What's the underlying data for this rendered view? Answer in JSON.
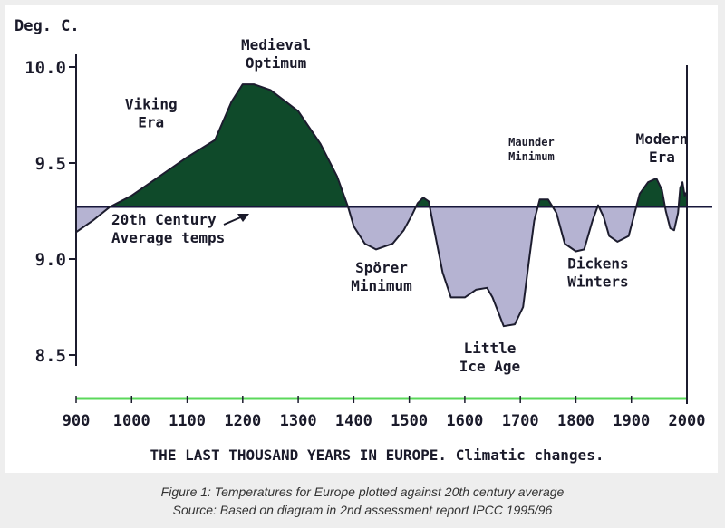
{
  "chart_data": {
    "type": "area",
    "title": "THE LAST THOUSAND YEARS IN EUROPE. Climatic changes.",
    "ylabel": "Deg. C.",
    "xlim": [
      900,
      2000
    ],
    "ylim": [
      8.25,
      10.1
    ],
    "baseline": 9.27,
    "baseline_label": [
      "20th Century",
      "Average temps"
    ],
    "x_ticks": [
      900,
      1000,
      1100,
      1200,
      1300,
      1400,
      1500,
      1600,
      1700,
      1800,
      1900,
      2000
    ],
    "x_tick_labels": [
      "900",
      "1000",
      "1100",
      "1200",
      "1300",
      "1400",
      "1500",
      "1600",
      "1700",
      "1800",
      "1900",
      "2000"
    ],
    "y_ticks": [
      10.0,
      9.5,
      9.0,
      8.5
    ],
    "y_tick_labels": [
      "10.0",
      "9.5",
      "9.0",
      "8.5"
    ],
    "series": [
      {
        "name": "Temperature",
        "points": [
          [
            900,
            9.14
          ],
          [
            930,
            9.2
          ],
          [
            960,
            9.27
          ],
          [
            1000,
            9.33
          ],
          [
            1050,
            9.43
          ],
          [
            1100,
            9.53
          ],
          [
            1150,
            9.62
          ],
          [
            1180,
            9.82
          ],
          [
            1200,
            9.91
          ],
          [
            1220,
            9.91
          ],
          [
            1250,
            9.88
          ],
          [
            1300,
            9.77
          ],
          [
            1340,
            9.6
          ],
          [
            1370,
            9.43
          ],
          [
            1390,
            9.27
          ],
          [
            1400,
            9.17
          ],
          [
            1420,
            9.08
          ],
          [
            1440,
            9.05
          ],
          [
            1470,
            9.08
          ],
          [
            1490,
            9.15
          ],
          [
            1505,
            9.23
          ],
          [
            1515,
            9.29
          ],
          [
            1525,
            9.32
          ],
          [
            1535,
            9.3
          ],
          [
            1545,
            9.15
          ],
          [
            1560,
            8.93
          ],
          [
            1575,
            8.8
          ],
          [
            1600,
            8.8
          ],
          [
            1620,
            8.84
          ],
          [
            1640,
            8.85
          ],
          [
            1650,
            8.8
          ],
          [
            1670,
            8.65
          ],
          [
            1690,
            8.66
          ],
          [
            1705,
            8.75
          ],
          [
            1715,
            8.98
          ],
          [
            1725,
            9.2
          ],
          [
            1735,
            9.31
          ],
          [
            1750,
            9.31
          ],
          [
            1765,
            9.24
          ],
          [
            1780,
            9.08
          ],
          [
            1800,
            9.04
          ],
          [
            1815,
            9.05
          ],
          [
            1830,
            9.2
          ],
          [
            1840,
            9.28
          ],
          [
            1850,
            9.22
          ],
          [
            1860,
            9.12
          ],
          [
            1875,
            9.09
          ],
          [
            1895,
            9.12
          ],
          [
            1905,
            9.23
          ],
          [
            1915,
            9.34
          ],
          [
            1930,
            9.4
          ],
          [
            1945,
            9.42
          ],
          [
            1955,
            9.36
          ],
          [
            1962,
            9.25
          ],
          [
            1970,
            9.16
          ],
          [
            1977,
            9.15
          ],
          [
            1984,
            9.24
          ],
          [
            1988,
            9.37
          ],
          [
            1992,
            9.4
          ],
          [
            1996,
            9.33
          ],
          [
            2000,
            9.35
          ]
        ]
      }
    ],
    "annotations": [
      {
        "text": [
          "Medieval",
          "Optimum"
        ],
        "x": 1260,
        "y": 10.09
      },
      {
        "text": [
          "Viking",
          "Era"
        ],
        "x": 1035,
        "y": 9.78
      },
      {
        "text": [
          "Maunder",
          "Minimum"
        ],
        "x": 1720,
        "y": 9.59
      },
      {
        "text": [
          "Modern",
          "Era"
        ],
        "x": 1955,
        "y": 9.6
      },
      {
        "text": [
          "Spörer",
          "Minimum"
        ],
        "x": 1450,
        "y": 8.93
      },
      {
        "text": [
          "Dickens",
          "Winters"
        ],
        "x": 1840,
        "y": 8.95
      },
      {
        "text": [
          "Little",
          "Ice Age"
        ],
        "x": 1645,
        "y": 8.51
      }
    ],
    "colors": {
      "warm": "#0f4a2a",
      "cold": "#b5b3d2",
      "outline": "#1c1c2e",
      "axis": "#1c1c2e",
      "green_axis": "#5bd85b",
      "baseline": "#16163a",
      "text": "#1a1a2a"
    }
  },
  "caption": {
    "line1": "Figure 1: Temperatures for Europe plotted against 20th century average",
    "line2": "Source: Based on diagram in 2nd assessment report IPCC 1995/96"
  }
}
